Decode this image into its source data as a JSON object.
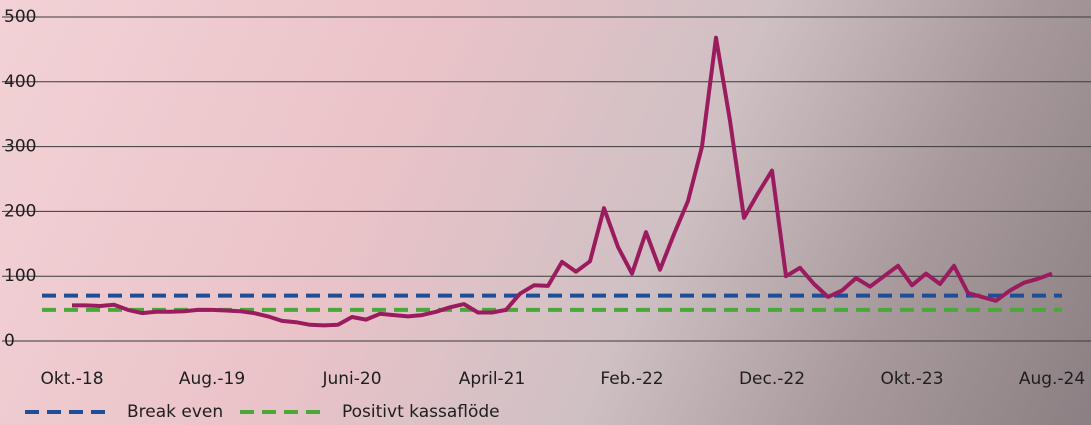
{
  "chart_data": {
    "type": "line",
    "categories": [
      "Okt.-18",
      null,
      null,
      null,
      null,
      null,
      null,
      null,
      null,
      null,
      "Aug.-19",
      null,
      null,
      null,
      null,
      null,
      null,
      null,
      null,
      null,
      "Juni-20",
      null,
      null,
      null,
      null,
      null,
      null,
      null,
      null,
      null,
      "April-21",
      null,
      null,
      null,
      null,
      null,
      null,
      null,
      null,
      null,
      "Feb.-22",
      null,
      null,
      null,
      null,
      null,
      null,
      null,
      null,
      null,
      "Dec.-22",
      null,
      null,
      null,
      null,
      null,
      null,
      null,
      null,
      null,
      "Okt.-23",
      null,
      null,
      null,
      null,
      null,
      null,
      null,
      null,
      null,
      "Aug.-24"
    ],
    "series": [
      {
        "color": "#9b1b5f",
        "values": [
          55,
          55,
          54,
          56,
          48,
          43,
          45,
          45,
          46,
          48,
          48,
          47,
          46,
          43,
          38,
          31,
          29,
          25,
          24,
          25,
          37,
          33,
          42,
          40,
          38,
          40,
          45,
          52,
          57,
          44,
          44,
          48,
          73,
          86,
          85,
          122,
          107,
          123,
          205,
          145,
          104,
          168,
          110,
          165,
          216,
          300,
          468,
          340,
          190,
          228,
          263,
          100,
          113,
          88,
          68,
          78,
          97,
          84,
          100,
          116,
          86,
          104,
          88,
          116,
          74,
          68,
          62,
          78,
          90,
          96,
          104
        ]
      }
    ],
    "reference_lines": [
      {
        "name": "Break even",
        "color": "#1f4e99",
        "value": 70
      },
      {
        "name": "Positivt kassaflöde",
        "color": "#4aa83a",
        "value": 48
      }
    ],
    "ylim": [
      0,
      500
    ],
    "yticks": [
      0,
      100,
      200,
      300,
      400,
      500
    ],
    "grid": true
  }
}
